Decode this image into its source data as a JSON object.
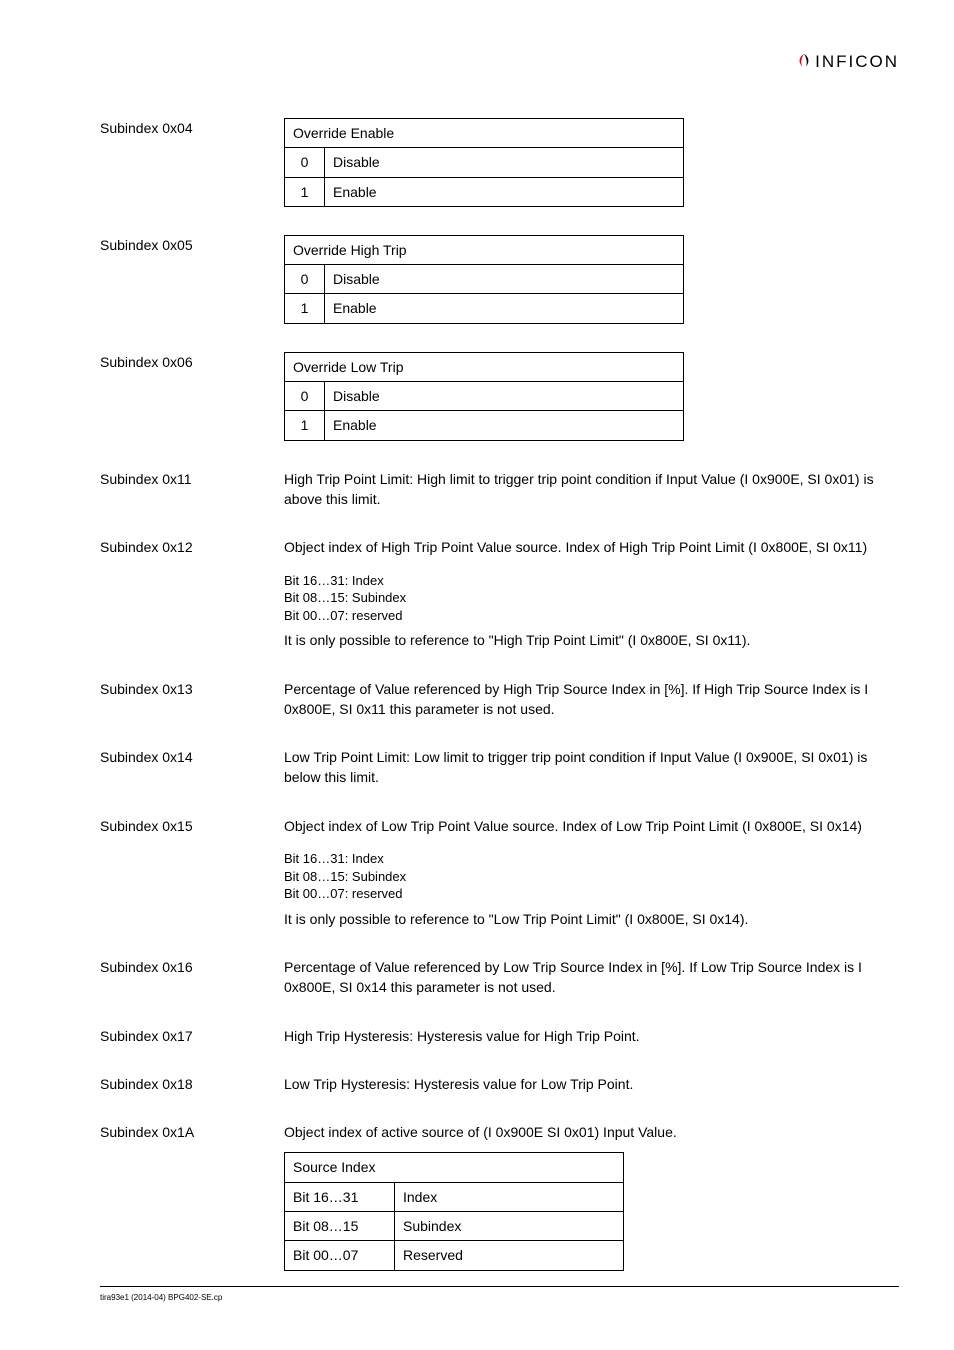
{
  "logo": {
    "text": "INFICON",
    "mark_color_left": "#e30613",
    "mark_color_right": "#000000"
  },
  "rows": [
    {
      "label": "Subindex 0x04",
      "type": "enum_table",
      "header": "Override Enable",
      "items": [
        {
          "code": "0",
          "text": "Disable"
        },
        {
          "code": "1",
          "text": "Enable"
        }
      ]
    },
    {
      "label": "Subindex 0x05",
      "type": "enum_table",
      "header": "Override High Trip",
      "items": [
        {
          "code": "0",
          "text": "Disable"
        },
        {
          "code": "1",
          "text": "Enable"
        }
      ]
    },
    {
      "label": "Subindex 0x06",
      "type": "enum_table",
      "header": "Override Low Trip",
      "items": [
        {
          "code": "0",
          "text": "Disable"
        },
        {
          "code": "1",
          "text": "Enable"
        }
      ]
    },
    {
      "label": "Subindex 0x11",
      "type": "text",
      "text": "High Trip Point Limit: High limit to trigger trip point condition if Input Value (I 0x900E, SI 0x01) is above this limit."
    },
    {
      "label": "Subindex 0x12",
      "type": "text_bits",
      "text": "Object index of High Trip Point Value source. Index of High Trip Point Limit (I 0x800E, SI 0x11)",
      "bits": [
        "Bit 16…31: Index",
        "Bit 08…15: Subindex",
        "Bit 00…07: reserved"
      ],
      "after": "It is only possible to reference to \"High Trip Point Limit\" (I 0x800E, SI 0x11)."
    },
    {
      "label": "Subindex 0x13",
      "type": "text",
      "text": "Percentage of Value referenced by High Trip Source Index in [%]. If High Trip Source Index is I 0x800E, SI 0x11 this parameter is not used."
    },
    {
      "label": "Subindex 0x14",
      "type": "text",
      "text": "Low Trip Point Limit: Low limit to trigger trip point condition if Input Value (I 0x900E, SI 0x01) is below this limit."
    },
    {
      "label": "Subindex 0x15",
      "type": "text_bits",
      "text": "Object index of Low Trip Point Value source. Index of Low Trip Point Limit (I 0x800E, SI 0x14)",
      "bits": [
        "Bit 16…31: Index",
        "Bit 08…15: Subindex",
        "Bit 00…07: reserved"
      ],
      "after": "It is only possible to reference to \"Low Trip Point Limit\" (I 0x800E, SI 0x14)."
    },
    {
      "label": "Subindex 0x16",
      "type": "text",
      "text": "Percentage of Value referenced by Low Trip Source Index in [%]. If Low Trip Source Index is I 0x800E, SI 0x14 this parameter is not used."
    },
    {
      "label": "Subindex 0x17",
      "type": "text",
      "text": "High Trip Hysteresis: Hysteresis value for High Trip Point."
    },
    {
      "label": "Subindex 0x18",
      "type": "text",
      "text": "Low Trip Hysteresis: Hysteresis value for Low Trip Point."
    },
    {
      "label": "Subindex 0x1A",
      "type": "source_index",
      "text": "Object index of active source of (I 0x900E SI 0x01) Input Value.",
      "table_header": "Source Index",
      "rows": [
        {
          "l": "Bit 16…31",
          "r": "Index"
        },
        {
          "l": "Bit 08…15",
          "r": "Subindex"
        },
        {
          "l": "Bit 00…07",
          "r": "Reserved"
        }
      ]
    }
  ],
  "footer": "tira93e1    (2014-04)    BPG402-SE.cp"
}
